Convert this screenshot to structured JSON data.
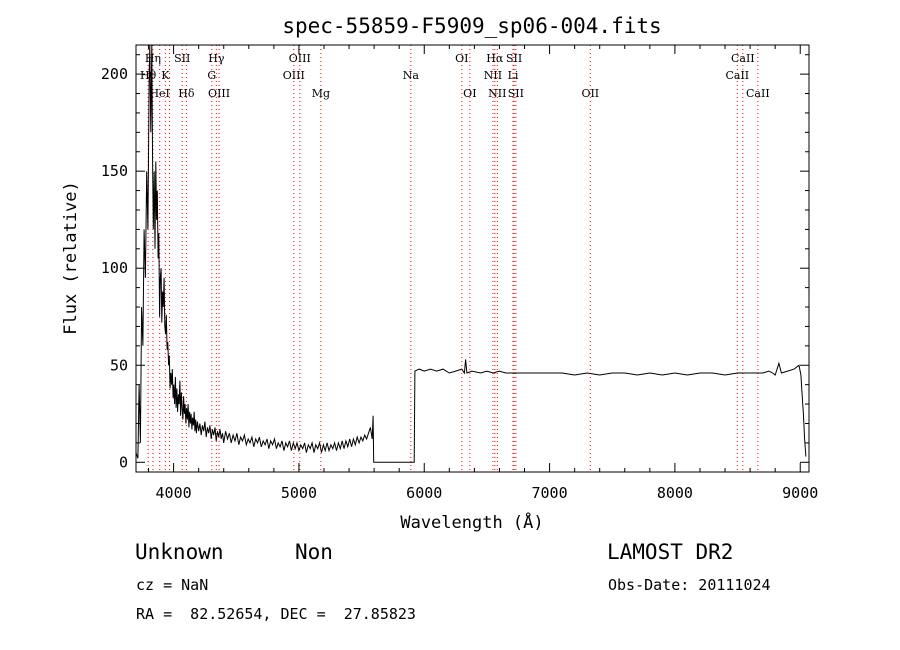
{
  "chart_data": {
    "type": "line",
    "title": "spec-55859-F5909_sp06-004.fits",
    "xlabel": "Wavelength (Å)",
    "ylabel": "Flux (relative)",
    "xlim": [
      3700,
      9070
    ],
    "ylim": [
      -5,
      215
    ],
    "xticks": [
      4000,
      5000,
      6000,
      7000,
      8000,
      9000
    ],
    "yticks": [
      0,
      50,
      100,
      150,
      200
    ],
    "grid": false,
    "series": [
      {
        "name": "flux",
        "points": [
          [
            3700,
            5
          ],
          [
            3715,
            2
          ],
          [
            3725,
            40
          ],
          [
            3735,
            10
          ],
          [
            3745,
            80
          ],
          [
            3755,
            60
          ],
          [
            3765,
            120
          ],
          [
            3775,
            95
          ],
          [
            3785,
            150
          ],
          [
            3795,
            120
          ],
          [
            3805,
            200
          ],
          [
            3810,
            215
          ],
          [
            3818,
            170
          ],
          [
            3826,
            215
          ],
          [
            3832,
            160
          ],
          [
            3838,
            120
          ],
          [
            3845,
            150
          ],
          [
            3852,
            110
          ],
          [
            3858,
            155
          ],
          [
            3864,
            125
          ],
          [
            3870,
            140
          ],
          [
            3876,
            105
          ],
          [
            3882,
            118
          ],
          [
            3888,
            75
          ],
          [
            3894,
            95
          ],
          [
            3900,
            100
          ],
          [
            3906,
            72
          ],
          [
            3912,
            88
          ],
          [
            3918,
            80
          ],
          [
            3924,
            95
          ],
          [
            3930,
            70
          ],
          [
            3936,
            66
          ],
          [
            3942,
            76
          ],
          [
            3948,
            58
          ],
          [
            3954,
            62
          ],
          [
            3960,
            50
          ],
          [
            3966,
            55
          ],
          [
            3972,
            38
          ],
          [
            3978,
            46
          ],
          [
            3984,
            40
          ],
          [
            3990,
            48
          ],
          [
            3996,
            33
          ],
          [
            4002,
            40
          ],
          [
            4008,
            30
          ],
          [
            4014,
            44
          ],
          [
            4020,
            28
          ],
          [
            4026,
            38
          ],
          [
            4032,
            26
          ],
          [
            4038,
            35
          ],
          [
            4044,
            30
          ],
          [
            4050,
            42
          ],
          [
            4056,
            24
          ],
          [
            4062,
            36
          ],
          [
            4068,
            28
          ],
          [
            4074,
            22
          ],
          [
            4080,
            34
          ],
          [
            4086,
            25
          ],
          [
            4092,
            30
          ],
          [
            4098,
            20
          ],
          [
            4104,
            28
          ],
          [
            4110,
            22
          ],
          [
            4116,
            30
          ],
          [
            4122,
            18
          ],
          [
            4128,
            26
          ],
          [
            4134,
            20
          ],
          [
            4140,
            25
          ],
          [
            4146,
            17
          ],
          [
            4152,
            23
          ],
          [
            4158,
            19
          ],
          [
            4164,
            26
          ],
          [
            4170,
            16
          ],
          [
            4176,
            22
          ],
          [
            4182,
            15
          ],
          [
            4190,
            21
          ],
          [
            4200,
            16
          ],
          [
            4210,
            20
          ],
          [
            4220,
            14
          ],
          [
            4230,
            19
          ],
          [
            4240,
            16
          ],
          [
            4250,
            21
          ],
          [
            4260,
            13
          ],
          [
            4270,
            18
          ],
          [
            4280,
            15
          ],
          [
            4290,
            19
          ],
          [
            4300,
            12
          ],
          [
            4310,
            17
          ],
          [
            4320,
            14
          ],
          [
            4330,
            18
          ],
          [
            4340,
            11
          ],
          [
            4350,
            16
          ],
          [
            4360,
            13
          ],
          [
            4370,
            17
          ],
          [
            4380,
            12
          ],
          [
            4390,
            15
          ],
          [
            4400,
            10
          ],
          [
            4415,
            16
          ],
          [
            4430,
            12
          ],
          [
            4445,
            15
          ],
          [
            4460,
            10
          ],
          [
            4475,
            14
          ],
          [
            4490,
            11
          ],
          [
            4505,
            15
          ],
          [
            4520,
            9
          ],
          [
            4535,
            13
          ],
          [
            4550,
            11
          ],
          [
            4565,
            14
          ],
          [
            4580,
            9
          ],
          [
            4595,
            12
          ],
          [
            4610,
            10
          ],
          [
            4625,
            13
          ],
          [
            4640,
            8
          ],
          [
            4655,
            12
          ],
          [
            4670,
            10
          ],
          [
            4685,
            13
          ],
          [
            4700,
            8
          ],
          [
            4715,
            11
          ],
          [
            4730,
            9
          ],
          [
            4745,
            12
          ],
          [
            4760,
            7
          ],
          [
            4775,
            11
          ],
          [
            4790,
            9
          ],
          [
            4805,
            12
          ],
          [
            4820,
            7
          ],
          [
            4835,
            10
          ],
          [
            4850,
            8
          ],
          [
            4865,
            11
          ],
          [
            4880,
            6
          ],
          [
            4895,
            10
          ],
          [
            4910,
            8
          ],
          [
            4925,
            11
          ],
          [
            4940,
            6
          ],
          [
            4955,
            10
          ],
          [
            4970,
            7
          ],
          [
            4985,
            10
          ],
          [
            5000,
            6
          ],
          [
            5015,
            9
          ],
          [
            5030,
            7
          ],
          [
            5045,
            10
          ],
          [
            5060,
            5
          ],
          [
            5075,
            9
          ],
          [
            5090,
            7
          ],
          [
            5105,
            10
          ],
          [
            5120,
            5
          ],
          [
            5135,
            9
          ],
          [
            5150,
            7
          ],
          [
            5165,
            10
          ],
          [
            5180,
            5
          ],
          [
            5195,
            9
          ],
          [
            5210,
            6
          ],
          [
            5225,
            10
          ],
          [
            5240,
            6
          ],
          [
            5255,
            9
          ],
          [
            5270,
            7
          ],
          [
            5285,
            10
          ],
          [
            5300,
            6
          ],
          [
            5315,
            10
          ],
          [
            5330,
            7
          ],
          [
            5345,
            11
          ],
          [
            5360,
            7
          ],
          [
            5375,
            11
          ],
          [
            5390,
            8
          ],
          [
            5405,
            12
          ],
          [
            5420,
            8
          ],
          [
            5435,
            12
          ],
          [
            5450,
            9
          ],
          [
            5465,
            13
          ],
          [
            5480,
            10
          ],
          [
            5495,
            13
          ],
          [
            5510,
            11
          ],
          [
            5525,
            14
          ],
          [
            5540,
            12
          ],
          [
            5555,
            15
          ],
          [
            5570,
            18
          ],
          [
            5585,
            12
          ],
          [
            5592,
            24
          ],
          [
            5597,
            0
          ],
          [
            5920,
            0
          ],
          [
            5925,
            47
          ],
          [
            5960,
            48
          ],
          [
            6000,
            47
          ],
          [
            6050,
            48
          ],
          [
            6100,
            47
          ],
          [
            6150,
            48
          ],
          [
            6200,
            46
          ],
          [
            6250,
            47
          ],
          [
            6300,
            48
          ],
          [
            6320,
            46
          ],
          [
            6330,
            53
          ],
          [
            6340,
            46
          ],
          [
            6380,
            47
          ],
          [
            6450,
            46
          ],
          [
            6500,
            47
          ],
          [
            6550,
            46
          ],
          [
            6600,
            47
          ],
          [
            6650,
            46
          ],
          [
            6700,
            46
          ],
          [
            6800,
            46
          ],
          [
            6900,
            46
          ],
          [
            7000,
            46
          ],
          [
            7100,
            46
          ],
          [
            7200,
            45
          ],
          [
            7300,
            46
          ],
          [
            7400,
            45
          ],
          [
            7500,
            46
          ],
          [
            7600,
            46
          ],
          [
            7700,
            45
          ],
          [
            7800,
            46
          ],
          [
            7900,
            45
          ],
          [
            8000,
            46
          ],
          [
            8100,
            45
          ],
          [
            8200,
            46
          ],
          [
            8300,
            46
          ],
          [
            8400,
            45
          ],
          [
            8500,
            46
          ],
          [
            8600,
            46
          ],
          [
            8700,
            46
          ],
          [
            8750,
            47
          ],
          [
            8780,
            46
          ],
          [
            8800,
            45
          ],
          [
            8830,
            51
          ],
          [
            8850,
            46
          ],
          [
            8900,
            47
          ],
          [
            8950,
            48
          ],
          [
            8990,
            50
          ],
          [
            9005,
            45
          ],
          [
            9015,
            35
          ],
          [
            9025,
            25
          ],
          [
            9035,
            12
          ],
          [
            9045,
            3
          ]
        ]
      }
    ],
    "line_markers": [
      {
        "label": "Hη",
        "wave": 3835,
        "row": 1
      },
      {
        "label": "Hθ",
        "wave": 3797,
        "row": 2
      },
      {
        "label": "K",
        "wave": 3934,
        "row": 2
      },
      {
        "label": "HeI",
        "wave": 3889,
        "row": 3
      },
      {
        "label": "SII",
        "wave": 4069,
        "row": 1
      },
      {
        "label": "Hδ",
        "wave": 4102,
        "row": 3
      },
      {
        "label": "Hγ",
        "wave": 4341,
        "row": 1
      },
      {
        "label": "G",
        "wave": 4305,
        "row": 2
      },
      {
        "label": "OIII",
        "wave": 4363,
        "row": 3
      },
      {
        "label": "OIII",
        "wave": 5007,
        "row": 1
      },
      {
        "label": "OIII",
        "wave": 4959,
        "row": 2
      },
      {
        "label": "Mg",
        "wave": 5175,
        "row": 3
      },
      {
        "label": "Na",
        "wave": 5893,
        "row": 2
      },
      {
        "label": "OI",
        "wave": 6300,
        "row": 1
      },
      {
        "label": "OI",
        "wave": 6364,
        "row": 3
      },
      {
        "label": "Hα",
        "wave": 6563,
        "row": 1
      },
      {
        "label": "SII",
        "wave": 6717,
        "row": 1
      },
      {
        "label": "NII",
        "wave": 6548,
        "row": 2
      },
      {
        "label": "Li",
        "wave": 6708,
        "row": 2
      },
      {
        "label": "NII",
        "wave": 6583,
        "row": 3
      },
      {
        "label": "SII",
        "wave": 6731,
        "row": 3
      },
      {
        "label": "OII",
        "wave": 7325,
        "row": 3
      },
      {
        "label": "CaII",
        "wave": 8542,
        "row": 1
      },
      {
        "label": "CaII",
        "wave": 8498,
        "row": 2
      },
      {
        "label": "CaII",
        "wave": 8662,
        "row": 3
      }
    ],
    "marker_lines": [
      3797,
      3835,
      3889,
      3934,
      3968,
      4069,
      4102,
      4305,
      4341,
      4363,
      4959,
      5007,
      5175,
      5893,
      6300,
      6364,
      6548,
      6563,
      6583,
      6708,
      6717,
      6731,
      7325,
      8498,
      8542,
      8662
    ],
    "colors": {
      "line": "#000000",
      "marker": "#ff0000",
      "axis": "#000000",
      "background": "#ffffff"
    }
  },
  "info": {
    "object_class": "Unknown",
    "subclass": "Non",
    "survey": "LAMOST DR2",
    "redshift": "cz = NaN",
    "obs_date": "Obs-Date: 20111024",
    "coords": "RA =  82.52654, DEC =  27.85823"
  }
}
